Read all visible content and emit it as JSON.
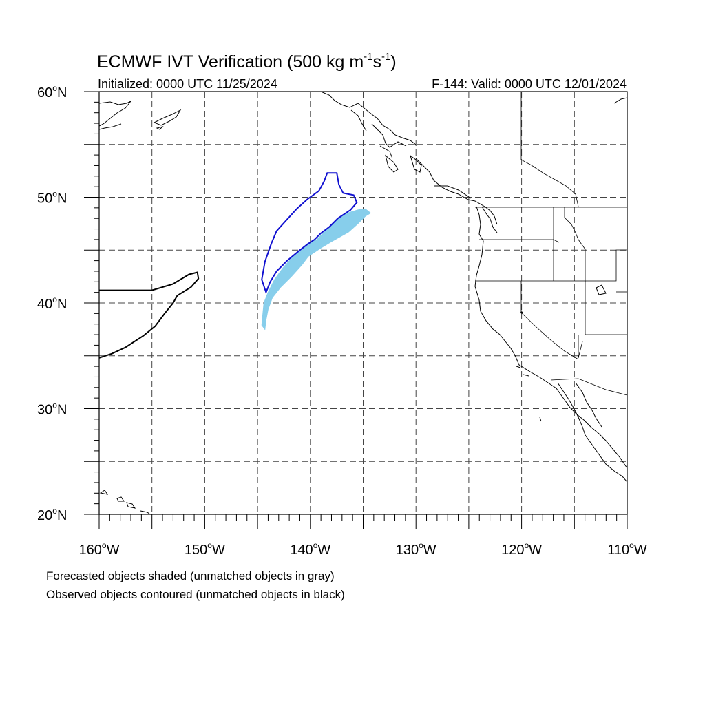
{
  "title": {
    "main": "ECMWF IVT Verification (500 kg m",
    "sup1": "-1",
    "mid": "s",
    "sup2": "-1",
    "end": ")"
  },
  "subtitle": {
    "initialized": "Initialized: 0000 UTC 11/25/2024",
    "valid": "F-144: Valid: 0000 UTC 12/01/2024"
  },
  "map": {
    "lon_range": [
      -160,
      -110
    ],
    "lat_range": [
      20,
      60
    ],
    "lat_ticks": [
      {
        "value": 60,
        "label": "60",
        "hemi": "N"
      },
      {
        "value": 50,
        "label": "50",
        "hemi": "N"
      },
      {
        "value": 40,
        "label": "40",
        "hemi": "N"
      },
      {
        "value": 30,
        "label": "30",
        "hemi": "N"
      },
      {
        "value": 20,
        "label": "20",
        "hemi": "N"
      }
    ],
    "lon_ticks": [
      {
        "value": -160,
        "label": "160",
        "hemi": "W"
      },
      {
        "value": -150,
        "label": "150",
        "hemi": "W"
      },
      {
        "value": -140,
        "label": "140",
        "hemi": "W"
      },
      {
        "value": -130,
        "label": "130",
        "hemi": "W"
      },
      {
        "value": -120,
        "label": "120",
        "hemi": "W"
      },
      {
        "value": -110,
        "label": "110",
        "hemi": "W"
      }
    ],
    "grid_lines": "dashed every 5 degrees",
    "colors": {
      "forecast_fill": "#87ceeb",
      "observed_matched": "#1010d0",
      "observed_unmatched": "#000000"
    }
  },
  "objects": {
    "forecast_matched": [
      [
        -144.3,
        37.5
      ],
      [
        -144.2,
        38.4
      ],
      [
        -144.0,
        39.4
      ],
      [
        -143.6,
        40.5
      ],
      [
        -142.8,
        41.5
      ],
      [
        -141.8,
        42.5
      ],
      [
        -140.8,
        43.6
      ],
      [
        -140.2,
        44.4
      ],
      [
        -139.0,
        45.2
      ],
      [
        -138.0,
        45.8
      ],
      [
        -136.4,
        46.7
      ],
      [
        -135.5,
        47.5
      ],
      [
        -134.8,
        48.2
      ],
      [
        -134.3,
        48.5
      ],
      [
        -134.8,
        48.9
      ],
      [
        -135.5,
        48.8
      ],
      [
        -136.5,
        48.5
      ],
      [
        -137.5,
        47.9
      ],
      [
        -138.5,
        46.9
      ],
      [
        -139.4,
        46.0
      ],
      [
        -140.3,
        45.6
      ],
      [
        -141.0,
        45.0
      ],
      [
        -141.8,
        44.2
      ],
      [
        -142.6,
        43.3
      ],
      [
        -143.4,
        42.2
      ],
      [
        -144.0,
        41.0
      ],
      [
        -144.4,
        40.0
      ],
      [
        -144.5,
        39.0
      ],
      [
        -144.6,
        37.9
      ]
    ],
    "observed_matched": [
      [
        -144.2,
        41.0
      ],
      [
        -143.8,
        42.0
      ],
      [
        -143.2,
        43.0
      ],
      [
        -142.2,
        44.0
      ],
      [
        -141.0,
        45.0
      ],
      [
        -140.2,
        45.6
      ],
      [
        -139.6,
        46.0
      ],
      [
        -139.0,
        46.6
      ],
      [
        -138.2,
        47.2
      ],
      [
        -137.4,
        48.0
      ],
      [
        -136.2,
        48.8
      ],
      [
        -135.6,
        49.5
      ],
      [
        -135.9,
        50.2
      ],
      [
        -136.9,
        50.4
      ],
      [
        -137.3,
        51.2
      ],
      [
        -137.5,
        52.3
      ],
      [
        -138.4,
        52.3
      ],
      [
        -138.7,
        51.5
      ],
      [
        -139.2,
        50.6
      ],
      [
        -140.3,
        49.8
      ],
      [
        -141.3,
        48.9
      ],
      [
        -142.3,
        47.8
      ],
      [
        -143.2,
        46.8
      ],
      [
        -143.7,
        45.6
      ],
      [
        -144.3,
        43.9
      ],
      [
        -144.6,
        42.2
      ]
    ],
    "observed_unmatched": [
      [
        -160.0,
        41.2
      ],
      [
        -155.0,
        41.2
      ],
      [
        -153.0,
        41.8
      ],
      [
        -151.5,
        42.7
      ],
      [
        -150.7,
        42.9
      ],
      [
        -150.6,
        42.3
      ],
      [
        -151.3,
        41.5
      ],
      [
        -152.6,
        40.7
      ],
      [
        -153.0,
        40.0
      ],
      [
        -153.8,
        39.0
      ],
      [
        -154.7,
        37.8
      ],
      [
        -155.8,
        36.9
      ],
      [
        -157.5,
        35.8
      ],
      [
        -158.8,
        35.2
      ],
      [
        -160.0,
        34.8
      ]
    ]
  },
  "footnotes": {
    "line1": "Forecasted objects shaded (unmatched objects in gray)",
    "line2": "Observed objects contoured (unmatched objects in black)"
  }
}
